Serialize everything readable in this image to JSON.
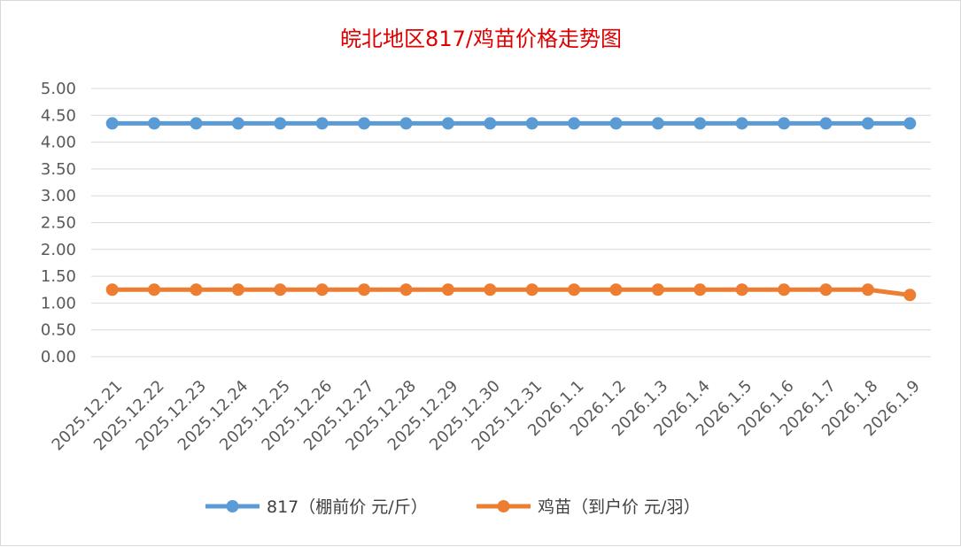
{
  "chart_data": {
    "type": "line",
    "title": "皖北地区817/鸡苗价格走势图",
    "xlabel": "",
    "ylabel": "",
    "ylim": [
      0,
      5
    ],
    "yticks": [
      "0.00",
      "0.50",
      "1.00",
      "1.50",
      "2.00",
      "2.50",
      "3.00",
      "3.50",
      "4.00",
      "4.50",
      "5.00"
    ],
    "grid": true,
    "legend_position": "bottom",
    "categories": [
      "2025.12.21",
      "2025.12.22",
      "2025.12.23",
      "2025.12.24",
      "2025.12.25",
      "2025.12.26",
      "2025.12.27",
      "2025.12.28",
      "2025.12.29",
      "2025.12.30",
      "2025.12.31",
      "2026.1.1",
      "2026.1.2",
      "2026.1.3",
      "2026.1.4",
      "2026.1.5",
      "2026.1.6",
      "2026.1.7",
      "2026.1.8",
      "2026.1.9"
    ],
    "series": [
      {
        "name": "817（棚前价 元/斤）",
        "color": "#5b9bd5",
        "values": [
          4.35,
          4.35,
          4.35,
          4.35,
          4.35,
          4.35,
          4.35,
          4.35,
          4.35,
          4.35,
          4.35,
          4.35,
          4.35,
          4.35,
          4.35,
          4.35,
          4.35,
          4.35,
          4.35,
          4.35
        ]
      },
      {
        "name": "鸡苗（到户价 元/羽）",
        "color": "#ed7d31",
        "values": [
          1.25,
          1.25,
          1.25,
          1.25,
          1.25,
          1.25,
          1.25,
          1.25,
          1.25,
          1.25,
          1.25,
          1.25,
          1.25,
          1.25,
          1.25,
          1.25,
          1.25,
          1.25,
          1.25,
          1.15
        ]
      }
    ]
  }
}
